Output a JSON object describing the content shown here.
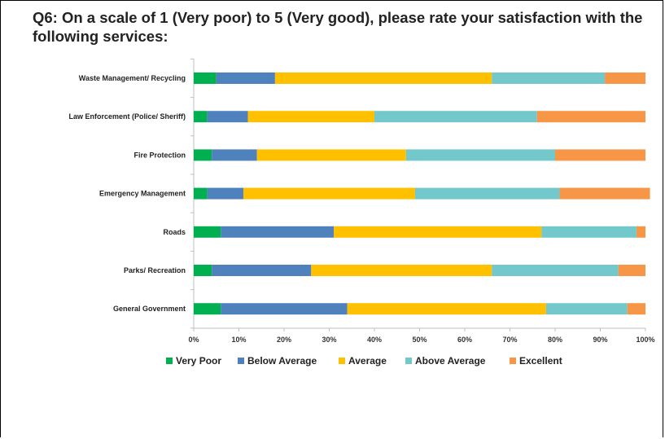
{
  "title": "Q6: On a scale of 1 (Very poor) to 5 (Very good), please rate your satisfaction with the following services:",
  "chart_data": {
    "type": "bar",
    "orientation": "horizontal",
    "stacked": "percent",
    "categories": [
      "Waste Management/ Recycling",
      "Law Enforcement (Police/ Sheriff)",
      "Fire Protection",
      "Emergency Management",
      "Roads",
      "Parks/ Recreation",
      "General Government"
    ],
    "series": [
      {
        "name": "Very Poor",
        "color": "#00B050",
        "values": [
          5,
          3,
          4,
          3,
          6,
          4,
          6
        ]
      },
      {
        "name": "Below Average",
        "color": "#4F81BD",
        "values": [
          13,
          9,
          10,
          8,
          25,
          22,
          28
        ]
      },
      {
        "name": "Average",
        "color": "#FFC000",
        "values": [
          48,
          28,
          33,
          38,
          46,
          40,
          44
        ]
      },
      {
        "name": "Above Average",
        "color": "#72C8CB",
        "values": [
          25,
          36,
          33,
          32,
          21,
          28,
          18
        ]
      },
      {
        "name": "Excellent",
        "color": "#F79646",
        "values": [
          9,
          24,
          20,
          20,
          2,
          6,
          4
        ]
      }
    ],
    "x_ticks": [
      "0%",
      "10%",
      "20%",
      "30%",
      "40%",
      "50%",
      "60%",
      "70%",
      "80%",
      "90%",
      "100%"
    ],
    "xlim": [
      0,
      100
    ],
    "legend_position": "bottom",
    "grid": false
  }
}
